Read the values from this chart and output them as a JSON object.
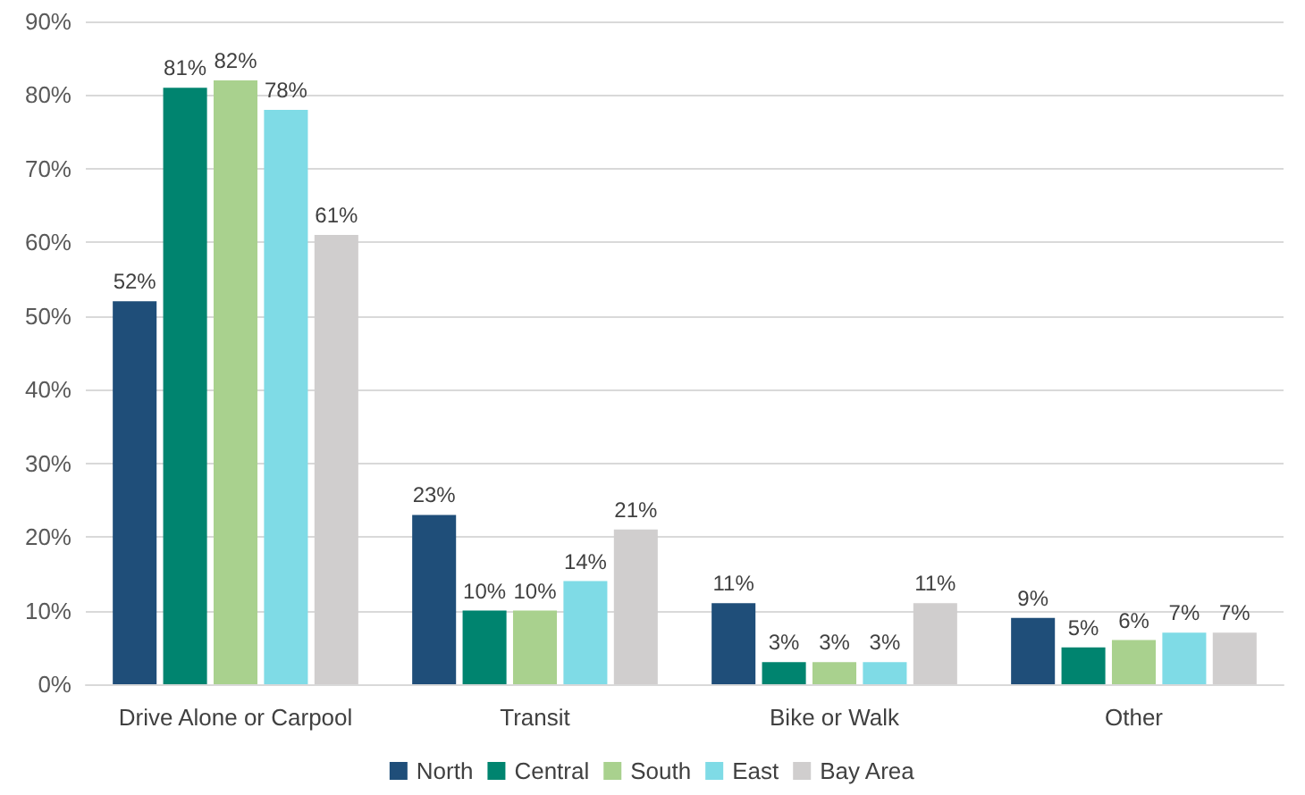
{
  "chart_data": {
    "type": "bar",
    "categories": [
      "Drive Alone or Carpool",
      "Transit",
      "Bike or Walk",
      "Other"
    ],
    "series": [
      {
        "name": "North",
        "color": "#1f4e79",
        "values": [
          52,
          23,
          11,
          9
        ],
        "value_labels": [
          "52%",
          "23%",
          "11%",
          "9%"
        ]
      },
      {
        "name": "Central",
        "color": "#00846f",
        "values": [
          81,
          10,
          3,
          5
        ],
        "value_labels": [
          "81%",
          "10%",
          "3%",
          "5%"
        ]
      },
      {
        "name": "South",
        "color": "#a9d18e",
        "values": [
          82,
          10,
          3,
          6
        ],
        "value_labels": [
          "82%",
          "10%",
          "3%",
          "6%"
        ]
      },
      {
        "name": "East",
        "color": "#7fdbe6",
        "values": [
          78,
          14,
          3,
          7
        ],
        "value_labels": [
          "78%",
          "14%",
          "3%",
          "7%"
        ]
      },
      {
        "name": "Bay Area",
        "color": "#d0cece",
        "values": [
          61,
          21,
          11,
          7
        ],
        "value_labels": [
          "61%",
          "21%",
          "11%",
          "7%"
        ]
      }
    ],
    "ylim": [
      0,
      90
    ],
    "yticks": [
      {
        "value": 0,
        "label": "0%"
      },
      {
        "value": 10,
        "label": "10%"
      },
      {
        "value": 20,
        "label": "20%"
      },
      {
        "value": 30,
        "label": "30%"
      },
      {
        "value": 40,
        "label": "40%"
      },
      {
        "value": 50,
        "label": "50%"
      },
      {
        "value": 60,
        "label": "60%"
      },
      {
        "value": 70,
        "label": "70%"
      },
      {
        "value": 80,
        "label": "80%"
      },
      {
        "value": 90,
        "label": "90%"
      }
    ],
    "grid": "y",
    "legend": "bottom"
  }
}
